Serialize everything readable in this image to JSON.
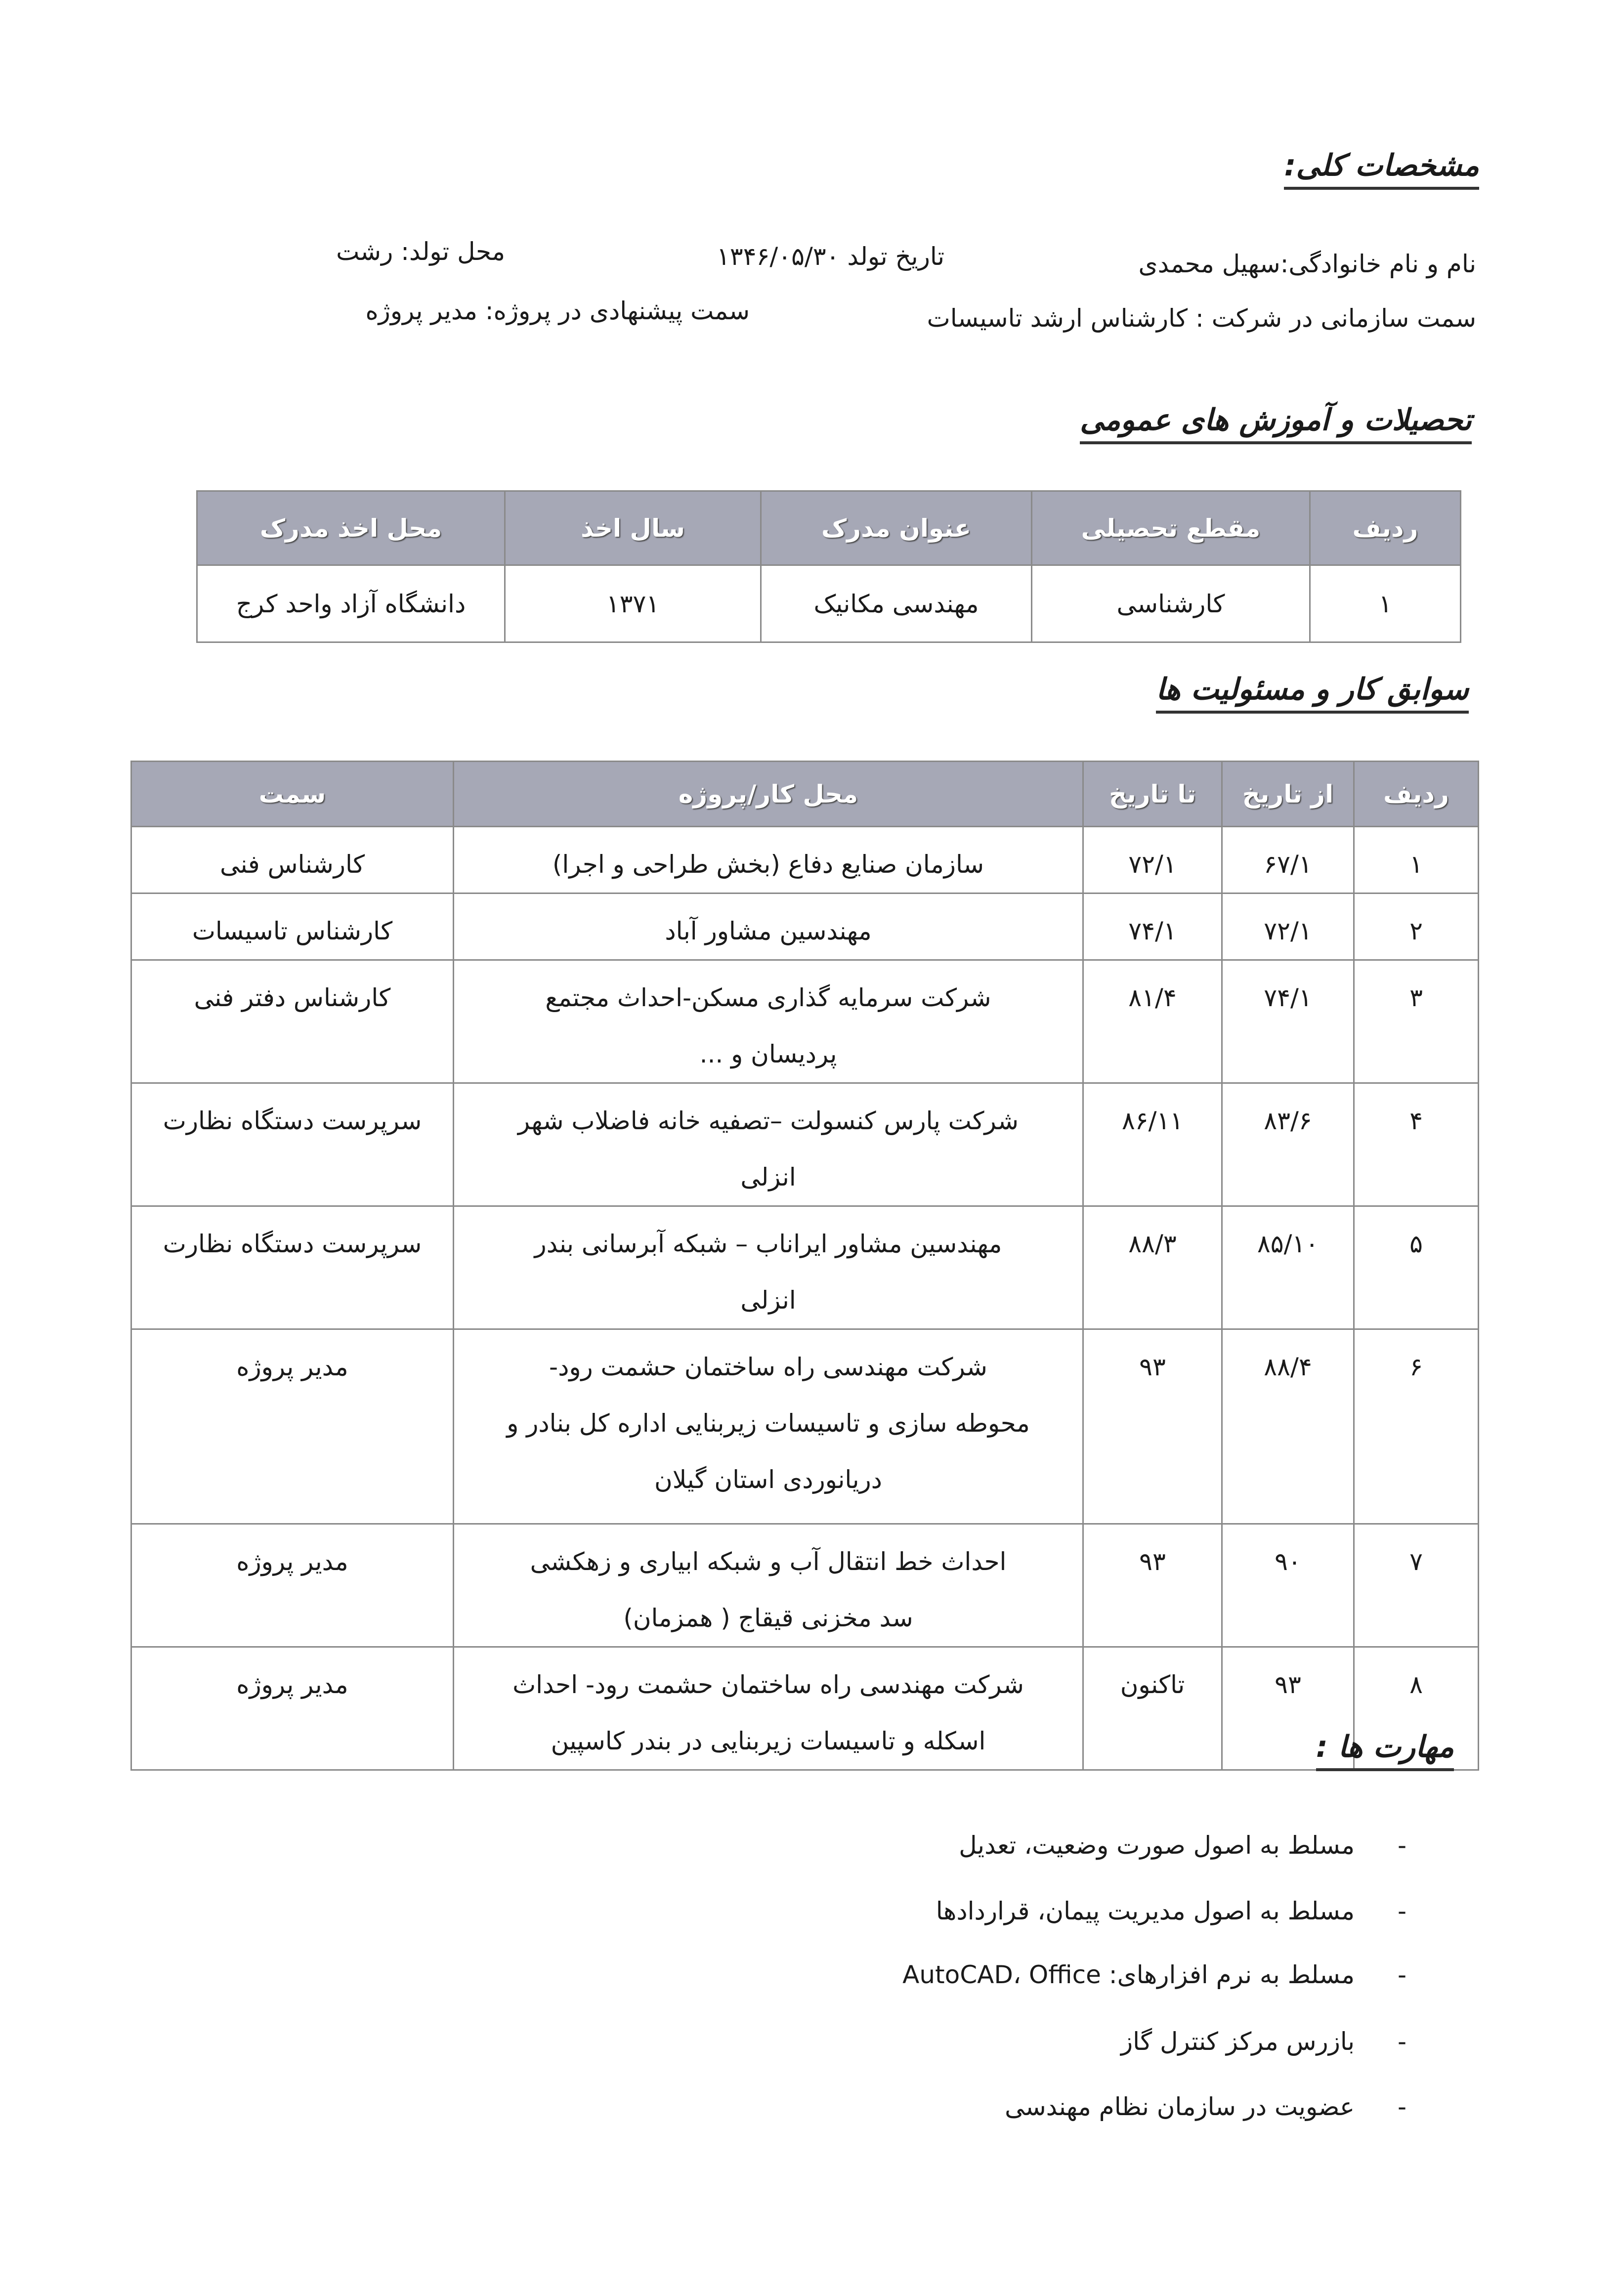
{
  "general": {
    "heading": "مشخصات کلی:",
    "name": "نام و نام خانوادگی:سهیل محمدی",
    "birth_date": "تاریخ تولد ۱۳۴۶/۰۵/۳۰",
    "birth_place": "محل تولد: رشت",
    "org_position": "سمت سازمانی در شرکت : کارشناس ارشد تاسیسات",
    "proposed_position": "سمت پیشنهادی در پروژه: مدیر پروژه"
  },
  "education": {
    "heading": "تحصیلات و آموزش های عمومی",
    "headers": [
      "ردیف",
      "مقطع تحصیلی",
      "عنوان مدرک",
      "سال اخذ",
      "محل اخذ مدرک"
    ],
    "rows": [
      [
        "۱",
        "کارشناسی",
        "مهندسی مکانیک",
        "۱۳۷۱",
        "دانشگاه آزاد واحد کرج"
      ]
    ]
  },
  "work": {
    "heading": "سوابق کار و مسئولیت ها",
    "headers": [
      "ردیف",
      "از تاریخ",
      "تا تاریخ",
      "محل کار/پروژه",
      "سمت"
    ],
    "rows": [
      {
        "n": "۱",
        "from": "۶۷/۱",
        "to": "۷۲/۱",
        "place": [
          "سازمان صنایع دفاع (بخش طراحی و اجرا)"
        ],
        "role": "کارشناس فنی"
      },
      {
        "n": "۲",
        "from": "۷۲/۱",
        "to": "۷۴/۱",
        "place": [
          "مهندسین مشاور آباد"
        ],
        "role": "کارشناس تاسیسات"
      },
      {
        "n": "۳",
        "from": "۷۴/۱",
        "to": "۸۱/۴",
        "place": [
          "شرکت سرمایه گذاری مسکن-احداث مجتمع",
          "پردیسان و ..."
        ],
        "role": "کارشناس دفتر فنی"
      },
      {
        "n": "۴",
        "from": "۸۳/۶",
        "to": "۸۶/۱۱",
        "place": [
          "شرکت پارس کنسولت –تصفیه خانه فاضلاب شهر",
          "انزلی"
        ],
        "role": "سرپرست دستگاه نظارت"
      },
      {
        "n": "۵",
        "from": "۸۵/۱۰",
        "to": "۸۸/۳",
        "place": [
          "مهندسین مشاور ایراناب – شبکه آبرسانی بندر",
          "انزلی"
        ],
        "role": "سرپرست دستگاه نظارت"
      },
      {
        "n": "۶",
        "from": "۸۸/۴",
        "to": "۹۳",
        "place": [
          "شرکت مهندسی راه ساختمان حشمت رود-",
          "محوطه سازی و تاسیسات زیربنایی اداره کل بنادر و",
          "دریانوردی استان گیلان"
        ],
        "role": "مدیر پروژه"
      },
      {
        "n": "۷",
        "from": "۹۰",
        "to": "۹۳",
        "place": [
          "احداث خط انتقال آب و شبکه ابیاری و زهکشی",
          "سد مخزنی قیقاج ( همزمان)"
        ],
        "role": "مدیر پروژه"
      },
      {
        "n": "۸",
        "from": "۹۳",
        "to": "تاکنون",
        "place": [
          "شرکت مهندسی راه ساختمان حشمت رود- احداث",
          "اسکله و تاسیسات زیربنایی در بندر کاسپین"
        ],
        "role": "مدیر پروژه"
      }
    ]
  },
  "skills": {
    "heading": "مهارت ها :",
    "items": [
      "مسلط به اصول صورت وضعیت، تعدیل",
      "مسلط به اصول مدیریت پیمان، قراردادها",
      "مسلط به نرم افزارهای:  AutoCAD، Office",
      "بازرس مرکز کنترل گاز",
      "عضویت در سازمان نظام مهندسی"
    ],
    "bullet": "-"
  }
}
